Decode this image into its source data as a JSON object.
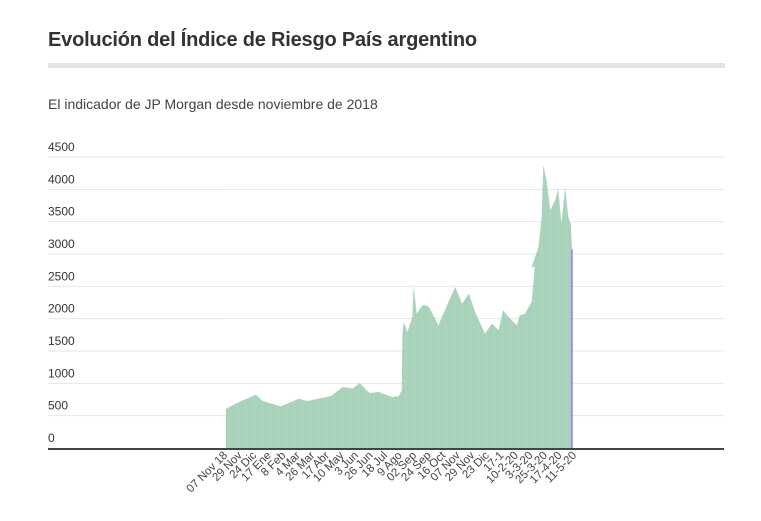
{
  "header": {
    "title": "Evolución del Índice de Riesgo País argentino",
    "subtitle": "El indicador de JP Morgan desde noviembre de 2018"
  },
  "chart_data": {
    "type": "area",
    "title": "Evolución del Índice de Riesgo País argentino",
    "subtitle": "El indicador de JP Morgan desde noviembre de 2018",
    "xlabel": "",
    "ylabel": "",
    "ylim": [
      0,
      4500
    ],
    "yticks": [
      0,
      500,
      1000,
      1500,
      2000,
      2500,
      3000,
      3500,
      4000,
      4500
    ],
    "grid": true,
    "x_tick_labels": [
      "07 Nov 18",
      "29 Nov",
      "24 Dic",
      "17 Ene",
      "8 Feb",
      "4 Mar",
      "26 Mar",
      "17 Abr",
      "10 May",
      "3 Jun",
      "26 Jun",
      "18 Jul",
      "9 Ago",
      "02 Sep",
      "24 Sep",
      "16 Oct",
      "07 Nov",
      "29 Nov",
      "23 Dic",
      "17-1",
      "10-2-20",
      "3-3-20",
      "25-3-20",
      "17-4-20",
      "11-5-20"
    ],
    "series": [
      {
        "name": "Riesgo País",
        "color": "#9fcdb3",
        "last_marker_color": "#7b68ee",
        "day_offset": [
          0,
          21,
          48,
          59,
          88,
          117,
          131,
          169,
          188,
          204,
          215,
          231,
          246,
          267,
          278,
          283,
          284,
          286,
          292,
          300,
          302,
          307,
          316,
          321,
          327,
          342,
          358,
          369,
          380,
          391,
          401,
          417,
          428,
          439,
          446,
          455,
          468,
          473,
          481,
          492,
          497,
          492,
          503,
          508,
          511,
          516,
          522,
          530,
          535,
          540,
          546,
          551,
          555,
          557
        ],
        "values": [
          608,
          711,
          825,
          727,
          644,
          763,
          727,
          804,
          943,
          918,
          1005,
          850,
          866,
          789,
          799,
          892,
          1742,
          1949,
          1794,
          2026,
          2526,
          2077,
          2206,
          2206,
          2180,
          1897,
          2258,
          2490,
          2232,
          2387,
          2103,
          1768,
          1923,
          1820,
          2129,
          2026,
          1897,
          2052,
          2077,
          2258,
          2799,
          2799,
          3108,
          3572,
          4371,
          4140,
          3675,
          3830,
          4011,
          3469,
          4036,
          3572,
          3469,
          3072
        ]
      }
    ]
  }
}
